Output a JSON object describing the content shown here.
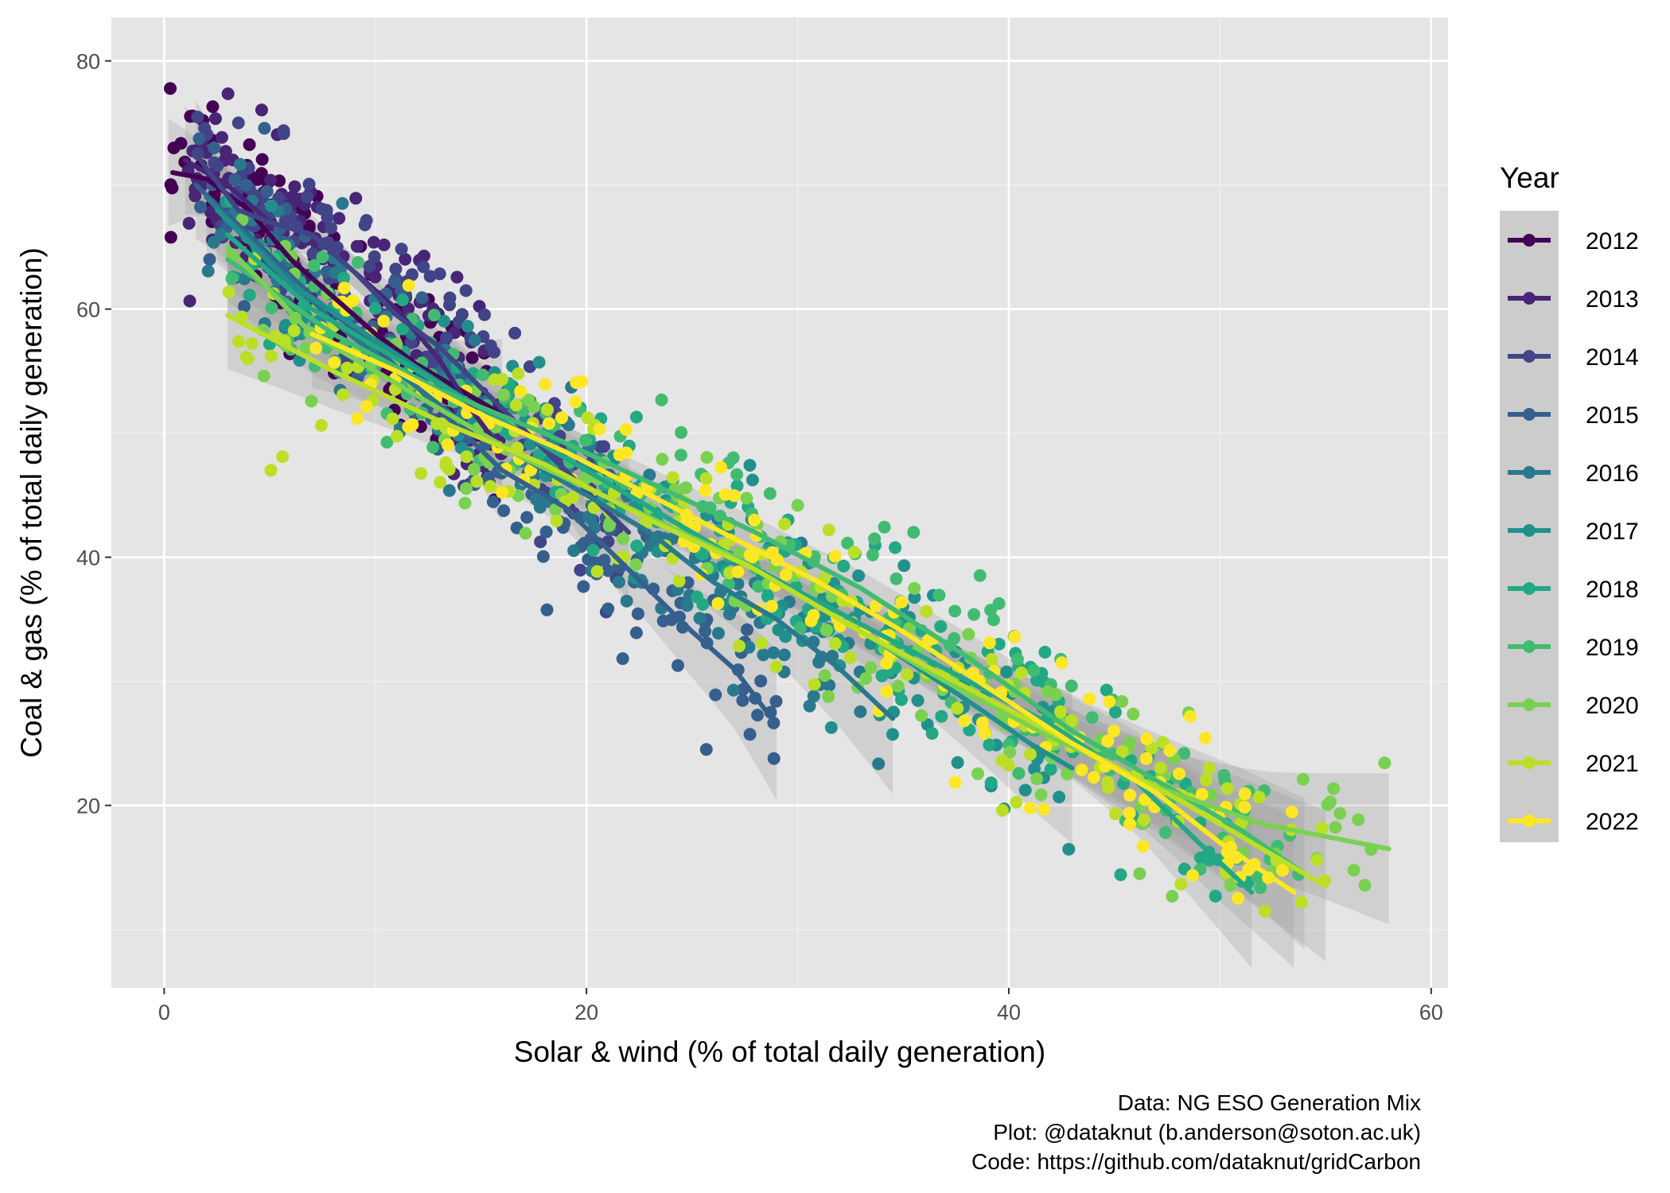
{
  "chart_data": {
    "type": "scatter",
    "xlabel": "Solar & wind (% of total daily generation)",
    "ylabel": "Coal & gas (% of total daily generation)",
    "xlim": [
      -2.5,
      60.8
    ],
    "ylim": [
      5.3,
      83.5
    ],
    "x_ticks": [
      0,
      20,
      40,
      60
    ],
    "y_ticks": [
      20,
      40,
      60,
      80
    ],
    "grid": true,
    "legend": {
      "title": "Year",
      "placement": "right",
      "items": [
        "2012",
        "2013",
        "2014",
        "2015",
        "2016",
        "2017",
        "2018",
        "2019",
        "2020",
        "2021",
        "2022"
      ]
    },
    "caption": [
      "Data: NG ESO Generation Mix",
      "Plot: @dataknut (b.anderson@soton.ac.uk)",
      "Code: https://github.com/dataknut/gridCarbon"
    ],
    "series": [
      {
        "name": "2012",
        "color": "#440154",
        "x_range": [
          0.2,
          16
        ],
        "trend": [
          [
            0.4,
            71
          ],
          [
            2,
            70.5
          ],
          [
            4,
            68
          ],
          [
            6,
            64
          ],
          [
            8,
            61
          ],
          [
            10,
            58
          ],
          [
            12,
            55.5
          ],
          [
            14,
            53.5
          ],
          [
            16,
            51.5
          ]
        ]
      },
      {
        "name": "2013",
        "color": "#482576",
        "x_range": [
          1,
          16
        ],
        "trend": [
          [
            1,
            72
          ],
          [
            3,
            70
          ],
          [
            5,
            67
          ],
          [
            7,
            66
          ],
          [
            9,
            63
          ],
          [
            11,
            60
          ],
          [
            13,
            56
          ],
          [
            14.5,
            52
          ],
          [
            15.8,
            49
          ]
        ]
      },
      {
        "name": "2014",
        "color": "#414487",
        "x_range": [
          1.5,
          22
        ],
        "trend": [
          [
            1.5,
            72.5
          ],
          [
            3.5,
            68
          ],
          [
            5,
            67
          ],
          [
            7,
            66
          ],
          [
            9,
            63
          ],
          [
            11,
            59.5
          ],
          [
            13,
            57
          ],
          [
            16,
            52
          ],
          [
            19,
            47
          ],
          [
            22,
            42
          ]
        ]
      },
      {
        "name": "2015",
        "color": "#35608D",
        "x_range": [
          1.5,
          29
        ],
        "trend": [
          [
            1.5,
            70
          ],
          [
            4,
            66
          ],
          [
            7,
            61
          ],
          [
            10,
            57
          ],
          [
            13,
            52
          ],
          [
            16,
            47
          ],
          [
            19,
            44
          ],
          [
            22,
            39
          ],
          [
            25,
            34
          ],
          [
            27,
            31
          ],
          [
            29,
            26.5
          ]
        ]
      },
      {
        "name": "2016",
        "color": "#2A788E",
        "x_range": [
          2,
          34.5
        ],
        "trend": [
          [
            2,
            69
          ],
          [
            5,
            64
          ],
          [
            8,
            59
          ],
          [
            11,
            55
          ],
          [
            14,
            51
          ],
          [
            17,
            48
          ],
          [
            20,
            45
          ],
          [
            23,
            42
          ],
          [
            26,
            38
          ],
          [
            29,
            35
          ],
          [
            32,
            31
          ],
          [
            34.5,
            27
          ]
        ]
      },
      {
        "name": "2017",
        "color": "#21908C",
        "x_range": [
          2.5,
          43
        ],
        "trend": [
          [
            2.5,
            68
          ],
          [
            6,
            62
          ],
          [
            10,
            57.5
          ],
          [
            14,
            53
          ],
          [
            18,
            49
          ],
          [
            22,
            45
          ],
          [
            26,
            41
          ],
          [
            30,
            37
          ],
          [
            34,
            33
          ],
          [
            38,
            28.5
          ],
          [
            41,
            25
          ],
          [
            43,
            23
          ]
        ]
      },
      {
        "name": "2018",
        "color": "#22A884",
        "x_range": [
          3,
          51.5
        ],
        "trend": [
          [
            3,
            66
          ],
          [
            7,
            60
          ],
          [
            12,
            55
          ],
          [
            17,
            50
          ],
          [
            22,
            45
          ],
          [
            27,
            40
          ],
          [
            32,
            35.5
          ],
          [
            37,
            31
          ],
          [
            42,
            26.5
          ],
          [
            46,
            22
          ],
          [
            49,
            17
          ],
          [
            51.5,
            13
          ]
        ]
      },
      {
        "name": "2019",
        "color": "#42BB72",
        "x_range": [
          3,
          54
        ],
        "trend": [
          [
            3,
            64
          ],
          [
            8,
            58
          ],
          [
            13,
            53.5
          ],
          [
            18,
            50
          ],
          [
            23,
            46
          ],
          [
            28,
            42
          ],
          [
            33,
            37.5
          ],
          [
            38,
            32
          ],
          [
            43,
            26
          ],
          [
            47,
            22
          ],
          [
            51,
            18
          ],
          [
            54,
            14.5
          ]
        ]
      },
      {
        "name": "2020",
        "color": "#7AD151",
        "x_range": [
          3,
          58
        ],
        "trend": [
          [
            3,
            65
          ],
          [
            7,
            58
          ],
          [
            12,
            53
          ],
          [
            17,
            48
          ],
          [
            22,
            44
          ],
          [
            27,
            40
          ],
          [
            32,
            35
          ],
          [
            37,
            30
          ],
          [
            42,
            25.5
          ],
          [
            47,
            21.5
          ],
          [
            52,
            18.5
          ],
          [
            58,
            16.5
          ]
        ]
      },
      {
        "name": "2021",
        "color": "#BBDF27",
        "x_range": [
          3,
          55
        ],
        "trend": [
          [
            3,
            59.5
          ],
          [
            8,
            55
          ],
          [
            13,
            51
          ],
          [
            18,
            47.5
          ],
          [
            23,
            43
          ],
          [
            28,
            39
          ],
          [
            33,
            34
          ],
          [
            38,
            29.5
          ],
          [
            43,
            25
          ],
          [
            48,
            20.5
          ],
          [
            52,
            16.5
          ],
          [
            55,
            13.5
          ]
        ]
      },
      {
        "name": "2022",
        "color": "#FDE725",
        "x_range": [
          7,
          53.5
        ],
        "trend": [
          [
            7,
            58
          ],
          [
            11,
            55
          ],
          [
            15,
            51.5
          ],
          [
            19,
            48.5
          ],
          [
            23,
            45
          ],
          [
            27,
            41.5
          ],
          [
            31,
            38
          ],
          [
            35,
            34
          ],
          [
            39,
            29.5
          ],
          [
            43,
            25
          ],
          [
            47,
            21
          ],
          [
            50,
            17
          ],
          [
            53.5,
            13
          ]
        ]
      }
    ]
  }
}
